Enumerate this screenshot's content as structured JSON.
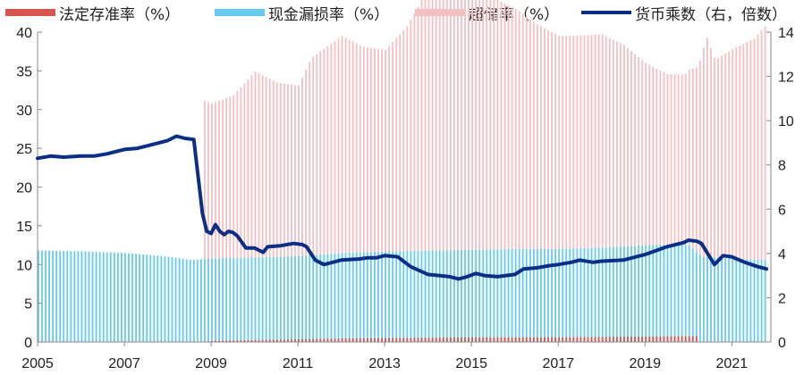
{
  "colors": {
    "statutory": "#d9534f",
    "cash_leakage": "#66ccee",
    "excess": "#f4c0c3",
    "multiplier": "#0b2e86",
    "axis": "#888888"
  },
  "chart_data": {
    "type": "bar+line",
    "x_start_year": 2005,
    "x_end_year": 2021.9,
    "x_tick_labels": [
      "2005",
      "2007",
      "2009",
      "2011",
      "2013",
      "2015",
      "2017",
      "2019",
      "2021"
    ],
    "y_left": {
      "min": 0,
      "max": 40,
      "ticks": [
        "0",
        "5",
        "10",
        "15",
        "20",
        "25",
        "30",
        "35",
        "40"
      ]
    },
    "y_right": {
      "min": 0,
      "max": 14,
      "ticks": [
        "0",
        "2",
        "4",
        "6",
        "8",
        "10",
        "12",
        "14"
      ]
    },
    "legend": [
      {
        "key": "statutory",
        "label": "法定存准率（%）",
        "kind": "bar"
      },
      {
        "key": "cash_leakage",
        "label": "现金漏损率（%）",
        "kind": "bar"
      },
      {
        "key": "excess",
        "label": "超储率（%）",
        "kind": "bar"
      },
      {
        "key": "multiplier",
        "label": "货币乘数（右，倍数）",
        "kind": "line"
      }
    ],
    "bar_series": {
      "statutory": {
        "axis": "left",
        "x": [
          2005,
          2008.8,
          2009,
          2010,
          2011,
          2012,
          2013,
          2014,
          2015,
          2016,
          2017,
          2018,
          2019,
          2020,
          2020.2
        ],
        "y": [
          0,
          0,
          0.15,
          0.25,
          0.35,
          0.45,
          0.5,
          0.55,
          0.6,
          0.6,
          0.6,
          0.65,
          0.7,
          0.75,
          0.75
        ]
      },
      "cash_leakage": {
        "axis": "left",
        "x": [
          2005,
          2006,
          2007,
          2008,
          2008.5,
          2009,
          2010,
          2011,
          2012,
          2013,
          2014,
          2015,
          2016,
          2017,
          2018,
          2019,
          2019.5,
          2020,
          2020.3,
          2021,
          2021.8
        ],
        "y": [
          11.8,
          11.7,
          11.5,
          11.0,
          10.6,
          10.8,
          10.9,
          11.1,
          11.5,
          11.7,
          11.8,
          11.9,
          12.0,
          12.0,
          12.2,
          12.5,
          12.6,
          12.5,
          11.0,
          10.8,
          10.6
        ]
      },
      "excess": {
        "axis": "left",
        "x": [
          2008.8,
          2009,
          2009.5,
          2010,
          2010.5,
          2011,
          2011.3,
          2012,
          2012.5,
          2013,
          2013.5,
          2014,
          2014.5,
          2014.75,
          2015,
          2015.5,
          2016,
          2016.5,
          2017,
          2017.5,
          2018,
          2018.5,
          2019,
          2019.5,
          2019.9,
          2020.2,
          2020.4,
          2020.6,
          2021,
          2021.5,
          2021.8
        ],
        "y": [
          20.5,
          20.0,
          21.0,
          24.0,
          22.5,
          22.0,
          25.5,
          28.0,
          26.5,
          26.0,
          29.0,
          34.0,
          35.0,
          35.5,
          33.0,
          32.5,
          31.0,
          29.0,
          27.5,
          27.5,
          27.5,
          26.0,
          23.5,
          22.0,
          22.0,
          24.0,
          28.5,
          25.5,
          27.0,
          28.5,
          30.5
        ]
      }
    },
    "line_series": {
      "multiplier": {
        "axis": "right",
        "x": [
          2005,
          2005.3,
          2005.6,
          2006,
          2006.3,
          2006.6,
          2007,
          2007.3,
          2007.6,
          2008,
          2008.2,
          2008.4,
          2008.6,
          2008.8,
          2008.9,
          2009.0,
          2009.1,
          2009.2,
          2009.3,
          2009.4,
          2009.5,
          2009.6,
          2009.8,
          2010,
          2010.2,
          2010.3,
          2010.6,
          2010.9,
          2011.1,
          2011.2,
          2011.4,
          2011.6,
          2012,
          2012.4,
          2012.6,
          2012.8,
          2013,
          2013.3,
          2013.6,
          2014,
          2014.5,
          2014.7,
          2014.9,
          2015.1,
          2015.3,
          2015.6,
          2016,
          2016.2,
          2016.5,
          2016.8,
          2017,
          2017.3,
          2017.5,
          2017.8,
          2018,
          2018.5,
          2019,
          2019.5,
          2019.9,
          2020.0,
          2020.2,
          2020.3,
          2020.6,
          2020.8,
          2021,
          2021.3,
          2021.6,
          2021.8
        ],
        "y": [
          8.3,
          8.4,
          8.35,
          8.4,
          8.4,
          8.5,
          8.7,
          8.75,
          8.9,
          9.1,
          9.3,
          9.2,
          9.15,
          5.8,
          5.0,
          4.9,
          5.3,
          5.0,
          4.85,
          5.0,
          4.95,
          4.8,
          4.25,
          4.25,
          4.05,
          4.3,
          4.35,
          4.45,
          4.4,
          4.3,
          3.7,
          3.5,
          3.7,
          3.75,
          3.8,
          3.8,
          3.9,
          3.85,
          3.4,
          3.05,
          2.95,
          2.85,
          2.95,
          3.1,
          3.0,
          2.95,
          3.05,
          3.3,
          3.35,
          3.45,
          3.5,
          3.6,
          3.7,
          3.6,
          3.65,
          3.7,
          3.95,
          4.3,
          4.5,
          4.6,
          4.55,
          4.45,
          3.5,
          3.9,
          3.85,
          3.6,
          3.4,
          3.3
        ]
      }
    }
  }
}
